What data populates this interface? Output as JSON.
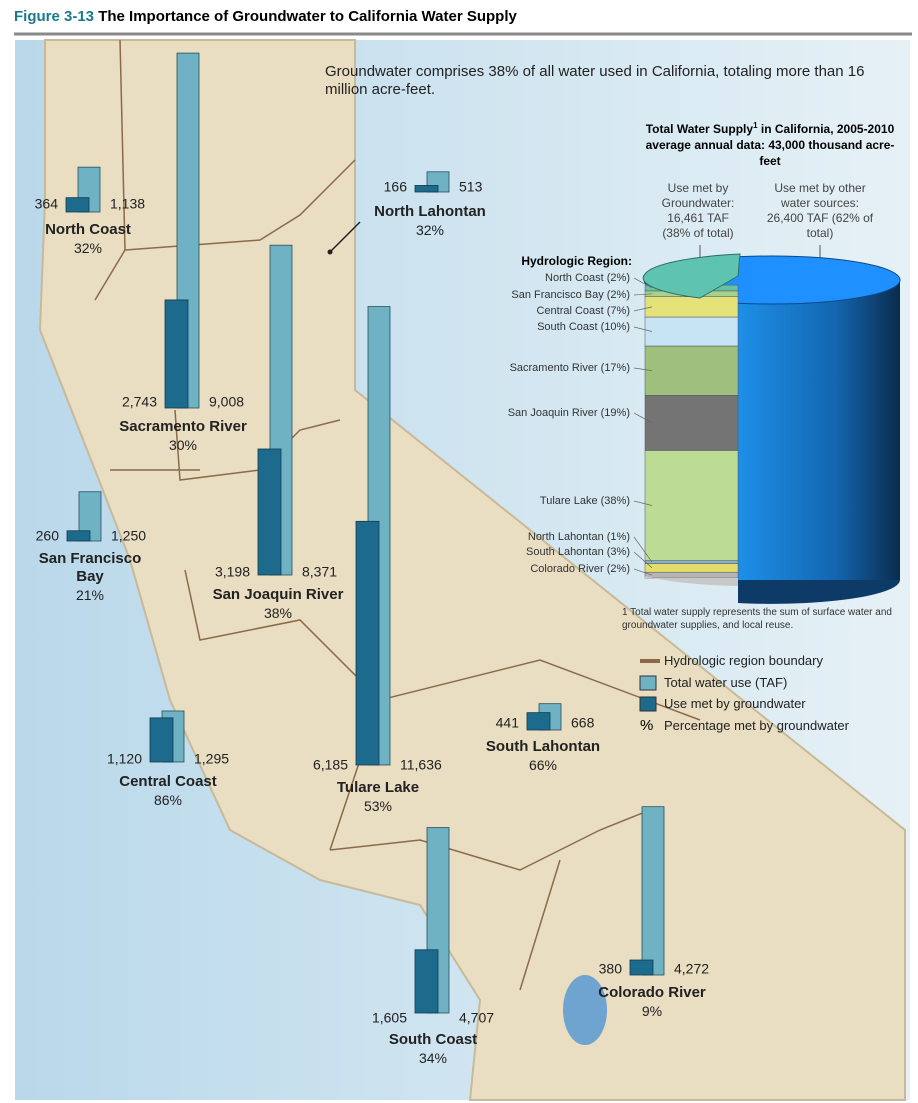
{
  "header": {
    "figure": "Figure 3-13",
    "title": "The Importance of Groundwater to California Water Supply"
  },
  "intro": "Groundwater comprises 38% of all water used in California, totaling more than 16 million acre-feet.",
  "colors": {
    "groundwater": "#1c6a8c",
    "total": "#6fb2c4"
  },
  "regions": [
    {
      "name": "North Coast",
      "groundwater": {
        "value": 364,
        "label": "364"
      },
      "total": {
        "value": 1138,
        "label": "1,138"
      },
      "percent": "32%"
    },
    {
      "name": "Sacramento River",
      "groundwater": {
        "value": 2743,
        "label": "2,743"
      },
      "total": {
        "value": 9008,
        "label": "9,008"
      },
      "percent": "30%"
    },
    {
      "name": "North Lahontan",
      "groundwater": {
        "value": 166,
        "label": "166"
      },
      "total": {
        "value": 513,
        "label": "513"
      },
      "percent": "32%"
    },
    {
      "name": "San Joaquin River",
      "groundwater": {
        "value": 3198,
        "label": "3,198"
      },
      "total": {
        "value": 8371,
        "label": "8,371"
      },
      "percent": "38%"
    },
    {
      "name": "San Francisco Bay",
      "groundwater": {
        "value": 260,
        "label": "260"
      },
      "total": {
        "value": 1250,
        "label": "1,250"
      },
      "percent": "21%"
    },
    {
      "name": "Tulare Lake",
      "groundwater": {
        "value": 6185,
        "label": "6,185"
      },
      "total": {
        "value": 11636,
        "label": "11,636"
      },
      "percent": "53%"
    },
    {
      "name": "Central Coast",
      "groundwater": {
        "value": 1120,
        "label": "1,120"
      },
      "total": {
        "value": 1295,
        "label": "1,295"
      },
      "percent": "86%"
    },
    {
      "name": "South Lahontan",
      "groundwater": {
        "value": 441,
        "label": "441"
      },
      "total": {
        "value": 668,
        "label": "668"
      },
      "percent": "66%"
    },
    {
      "name": "South Coast",
      "groundwater": {
        "value": 1605,
        "label": "1,605"
      },
      "total": {
        "value": 4707,
        "label": "4,707"
      },
      "percent": "34%"
    },
    {
      "name": "Colorado River",
      "groundwater": {
        "value": 380,
        "label": "380"
      },
      "total": {
        "value": 4272,
        "label": "4,272"
      },
      "percent": "9%"
    }
  ],
  "supply": {
    "title": "Total Water Supply",
    "footnote_mark": "1",
    "title_rest": "in California, 2005-2010 average annual data: 43,000 thousand acre-feet",
    "groundwater_text": "Use met by Groundwater: 16,461 TAF (38% of total)",
    "other_text": "Use met by other water sources: 26,400 TAF (62% of total)",
    "segments_heading": "Hydrologic Region:",
    "segments": [
      {
        "label": "North Coast (2%)",
        "value": 2,
        "color": "#66c2a5"
      },
      {
        "label": "San Francisco Bay (2%)",
        "value": 2,
        "color": "#a9d18e"
      },
      {
        "label": "Central Coast (7%)",
        "value": 7,
        "color": "#e6e27a"
      },
      {
        "label": "South Coast (10%)",
        "value": 10,
        "color": "#c7e4f5"
      },
      {
        "label": "Sacramento River (17%)",
        "value": 17,
        "color": "#9fbf7d"
      },
      {
        "label": "San Joaquin River (19%)",
        "value": 19,
        "color": "#747474"
      },
      {
        "label": "Tulare Lake (38%)",
        "value": 38,
        "color": "#bcdc95"
      },
      {
        "label": "North Lahontan (1%)",
        "value": 1,
        "color": "#7fb3d5"
      },
      {
        "label": "South Lahontan (3%)",
        "value": 3,
        "color": "#e2dd6a"
      },
      {
        "label": "Colorado River (2%)",
        "value": 2,
        "color": "#b5b5b5"
      }
    ],
    "footnote": "1 Total water supply represents the sum of surface water and groundwater supplies, and local reuse."
  },
  "legend": {
    "boundary": "Hydrologic region boundary",
    "total": "Total water use (TAF)",
    "groundwater": "Use met by groundwater",
    "percent_symbol": "%",
    "percent": "Percentage met by groundwater"
  }
}
